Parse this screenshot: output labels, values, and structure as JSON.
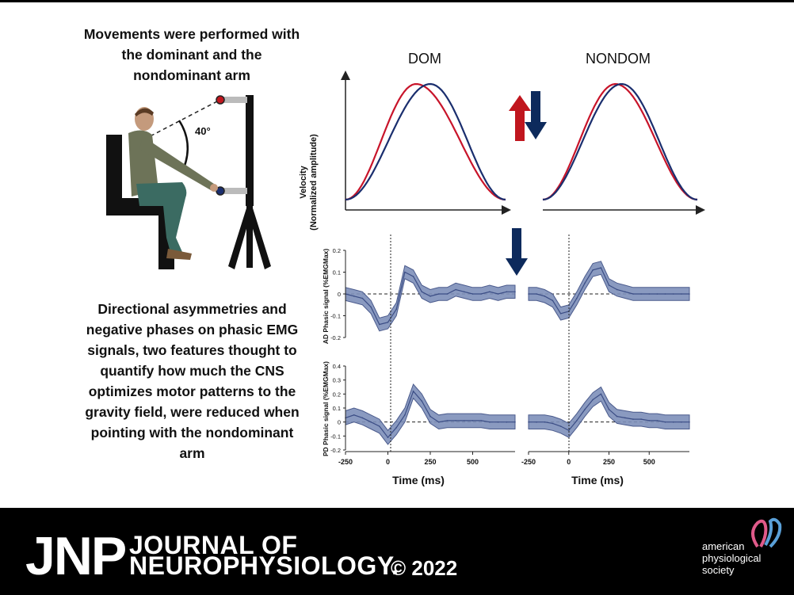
{
  "intro_text": "Movements were performed with the dominant and the nondominant arm",
  "angle_label": "40°",
  "summary_text": "Directional asymmetries and negative phases on phasic EMG signals, two features thought to quantify how much the CNS optimizes motor patterns to the gravity field, were reduced when pointing with the nondominant arm",
  "journal": {
    "abbrev": "JNP",
    "line1": "JOURNAL OF",
    "line2": "NEUROPHYSIOLOGY.",
    "copyright": "© 2022",
    "publisher": [
      "american",
      "physiological",
      "society"
    ]
  },
  "colors": {
    "up_arrow": "#c0161e",
    "down_arrow": "#0d2a5c",
    "blue_curve": "#1a2e6e",
    "red_curve": "#c8142a",
    "band": "#7d8fb9",
    "band_line": "#4a5a8c"
  },
  "chart_data": [
    {
      "type": "line",
      "title": "DOM",
      "ylabel": "Velocity (Normalized amplitude)",
      "series": [
        {
          "name": "upward",
          "color": "red",
          "peak_time": 0.44,
          "values": "bell-shaped"
        },
        {
          "name": "downward",
          "color": "blue",
          "peak_time": 0.53,
          "values": "bell-shaped"
        }
      ],
      "arrows": [
        "up",
        "down"
      ]
    },
    {
      "type": "line",
      "title": "NONDOM",
      "series": [
        {
          "name": "upward",
          "color": "red",
          "peak_time": 0.47
        },
        {
          "name": "downward",
          "color": "blue",
          "peak_time": 0.51
        }
      ]
    },
    {
      "type": "area",
      "panel": "AD DOM",
      "ylabel": "AD Phasic signal (%EMGMax)",
      "yticks": [
        "0.2",
        "0.1",
        "0",
        "-0.1",
        "-0.2"
      ],
      "ylim": [
        -0.2,
        0.2
      ],
      "x": [
        -250,
        -200,
        -150,
        -100,
        -50,
        0,
        50,
        100,
        150,
        200,
        250,
        300,
        350,
        400,
        450,
        500,
        550,
        600,
        650,
        700,
        750
      ],
      "y": [
        0.0,
        -0.01,
        -0.02,
        -0.06,
        -0.14,
        -0.13,
        -0.07,
        0.1,
        0.08,
        0.01,
        -0.01,
        0.0,
        0.0,
        0.02,
        0.01,
        0.0,
        0.0,
        0.01,
        0.0,
        0.01,
        0.01
      ]
    },
    {
      "type": "area",
      "panel": "AD NONDOM",
      "x": [
        -250,
        -200,
        -150,
        -100,
        -50,
        0,
        50,
        100,
        150,
        200,
        250,
        300,
        350,
        400,
        450,
        500,
        550,
        600,
        650,
        700,
        750
      ],
      "y": [
        0.0,
        0.0,
        -0.01,
        -0.03,
        -0.09,
        -0.08,
        -0.02,
        0.05,
        0.11,
        0.12,
        0.04,
        0.02,
        0.01,
        0.0,
        0.0,
        0.0,
        0.0,
        0.0,
        0.0,
        0.0,
        0.0
      ]
    },
    {
      "type": "area",
      "panel": "PD DOM",
      "ylabel": "PD Phasic signal (%EMGMax)",
      "yticks": [
        "0.4",
        "0.3",
        "0.2",
        "0.1",
        "0",
        "-0.1",
        "-0.2"
      ],
      "ylim": [
        -0.2,
        0.4
      ],
      "xticks": [
        "-250",
        "0",
        "250",
        "500"
      ],
      "xlabel": "Time (ms)",
      "x": [
        -250,
        -200,
        -150,
        -100,
        -50,
        0,
        50,
        100,
        150,
        200,
        250,
        300,
        350,
        400,
        450,
        500,
        550,
        600,
        650,
        700,
        750
      ],
      "y": [
        0.03,
        0.05,
        0.03,
        0.0,
        -0.03,
        -0.11,
        -0.04,
        0.05,
        0.22,
        0.15,
        0.04,
        0.0,
        0.01,
        0.01,
        0.01,
        0.01,
        0.01,
        0.0,
        0.0,
        0.0,
        0.0
      ]
    },
    {
      "type": "area",
      "panel": "PD NONDOM",
      "xticks": [
        "-250",
        "0",
        "250",
        "500"
      ],
      "xlabel": "Time (ms)",
      "x": [
        -250,
        -200,
        -150,
        -100,
        -50,
        0,
        50,
        100,
        150,
        200,
        250,
        300,
        350,
        400,
        450,
        500,
        550,
        600,
        650,
        700,
        750
      ],
      "y": [
        0.0,
        0.0,
        0.0,
        -0.01,
        -0.03,
        -0.06,
        0.01,
        0.09,
        0.16,
        0.2,
        0.09,
        0.04,
        0.03,
        0.02,
        0.02,
        0.01,
        0.01,
        0.0,
        0.0,
        0.0,
        0.0
      ]
    }
  ],
  "labels": {
    "dom": "DOM",
    "nondom": "NONDOM",
    "velocity_l1": "Velocity",
    "velocity_l2": "(Normalized amplitude)",
    "ad_ylabel": "AD Phasic signal (%EMGMax)",
    "pd_ylabel": "PD Phasic signal (%EMGMax)",
    "ad_yticks": [
      "0.2",
      "0.1",
      "0",
      "-0.1",
      "-0.2"
    ],
    "pd_yticks": [
      "0.4",
      "0.3",
      "0.2",
      "0.1",
      "0",
      "-0.1",
      "-0.2"
    ],
    "xticks": [
      "-250",
      "0",
      "250",
      "500"
    ],
    "xlabel": "Time (ms)"
  }
}
